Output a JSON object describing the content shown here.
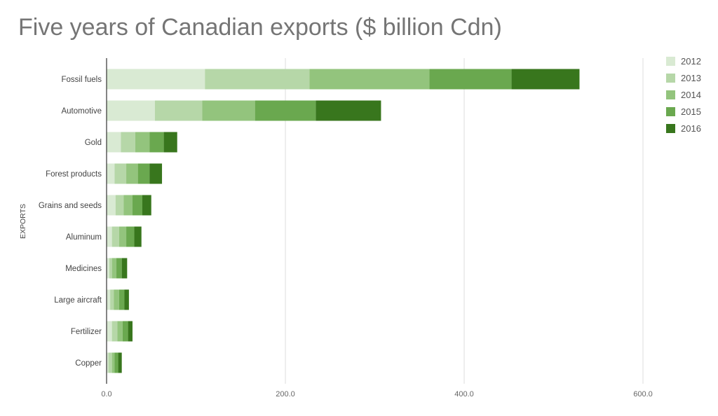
{
  "chart_data": {
    "type": "bar",
    "orientation": "horizontal",
    "stacked": true,
    "title": "Five years of Canadian exports ($ billion Cdn)",
    "ylabel": "EXPORTS",
    "xlabel": "",
    "xlim": [
      0,
      600
    ],
    "xticks": [
      "0.0",
      "200.0",
      "400.0",
      "600.0"
    ],
    "grid": true,
    "legend_position": "right",
    "categories": [
      "Fossil fuels",
      "Automotive",
      "Gold",
      "Forest products",
      "Grains and seeds",
      "Aluminum",
      "Medicines",
      "Large aircraft",
      "Fertilizer",
      "Copper"
    ],
    "series": [
      {
        "name": "2012",
        "color": "#d9ead3",
        "values": [
          110,
          54,
          16,
          9,
          10,
          6,
          3,
          4,
          6,
          2
        ]
      },
      {
        "name": "2013",
        "color": "#b6d7a8",
        "values": [
          117,
          53,
          16,
          13,
          9,
          8,
          3,
          4,
          6,
          4
        ]
      },
      {
        "name": "2014",
        "color": "#93c47d",
        "values": [
          134,
          59,
          16,
          13,
          10,
          8,
          5,
          6,
          6,
          3
        ]
      },
      {
        "name": "2015",
        "color": "#6aa84f",
        "values": [
          92,
          68,
          16,
          13,
          11,
          9,
          6,
          6,
          6,
          4
        ]
      },
      {
        "name": "2016",
        "color": "#38761d",
        "values": [
          76,
          73,
          15,
          14,
          10,
          8,
          6,
          5,
          5,
          4
        ]
      }
    ]
  }
}
